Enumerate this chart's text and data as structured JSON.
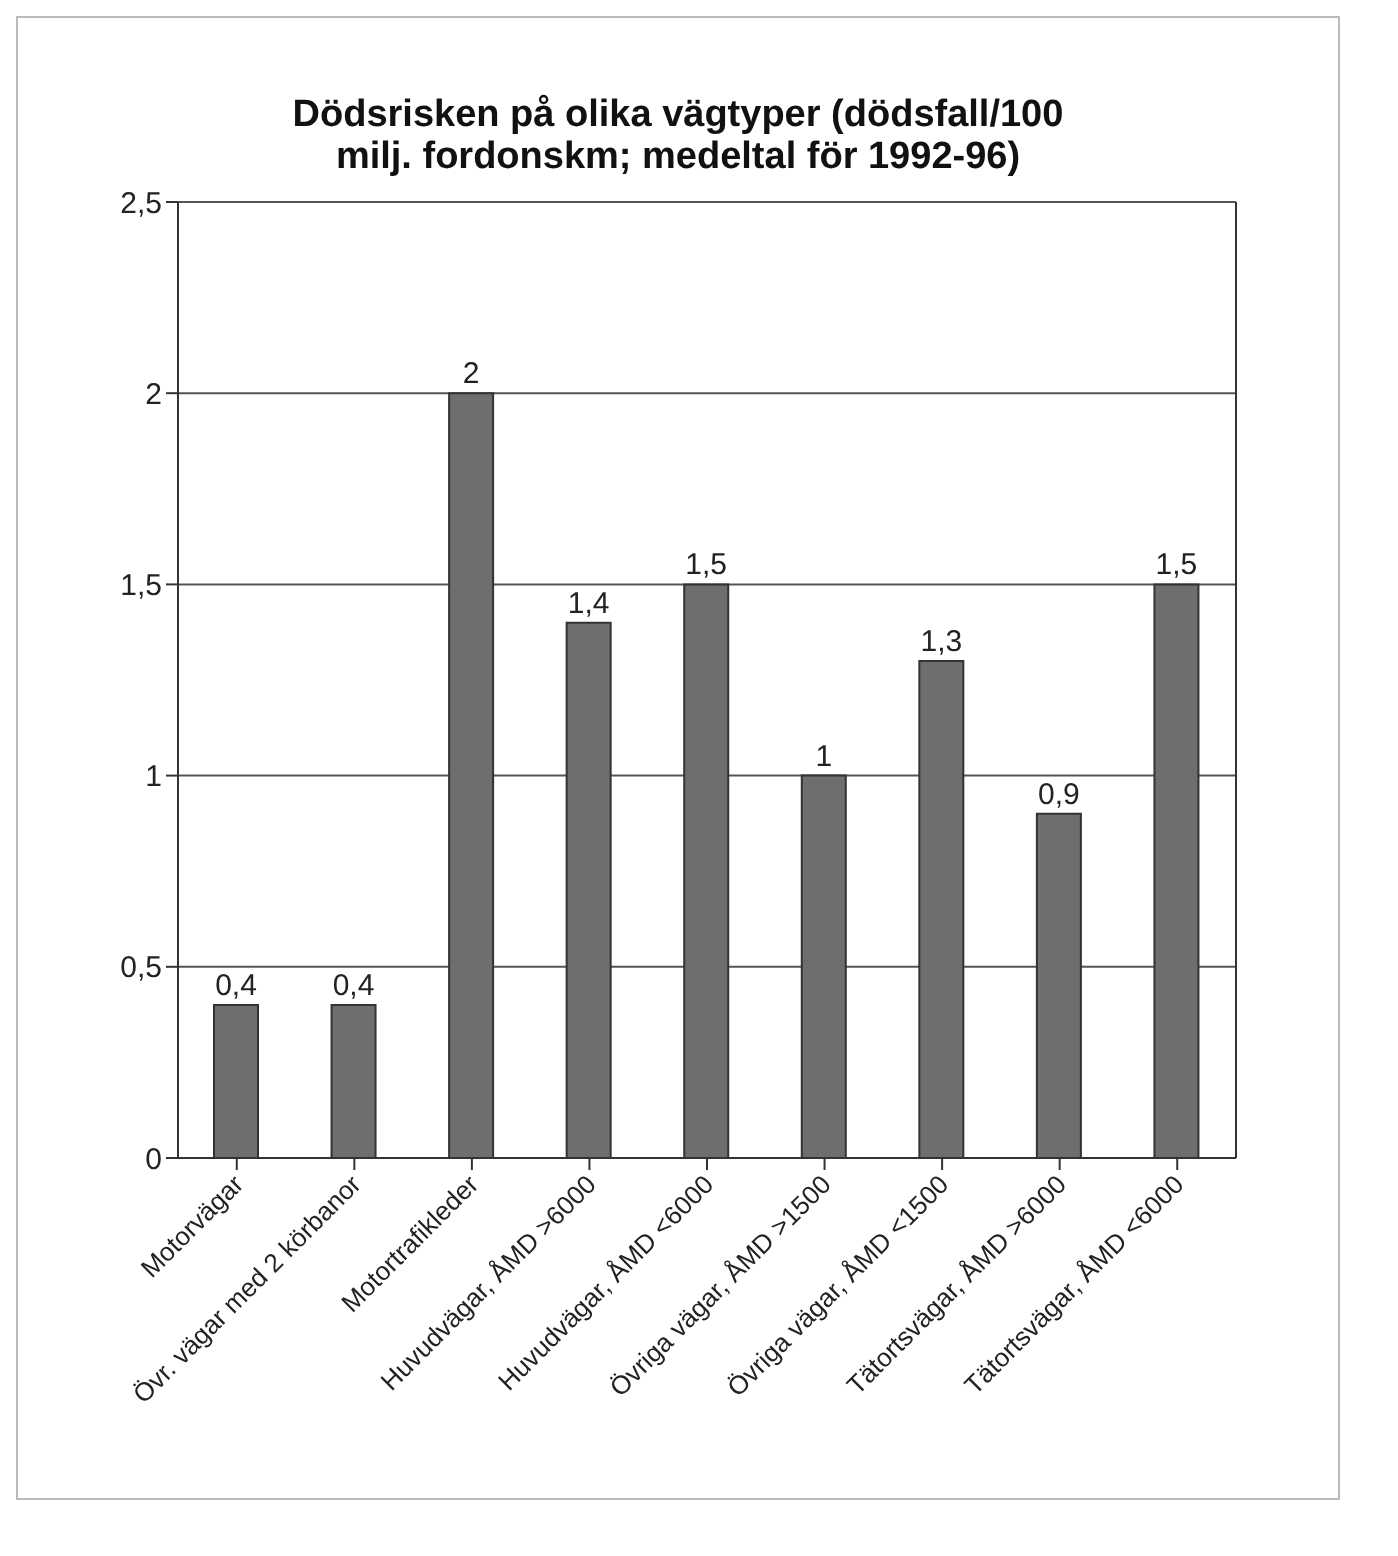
{
  "chart_data": {
    "type": "bar",
    "title": "Dödsrisken på olika vägtyper (dödsfall/100 milj. fordonskm; medeltal för 1992-96)",
    "categories": [
      "Motorvägar",
      "Övr. vägar med 2 körbanor",
      "Motortrafikleder",
      "Huvudvägar, ÅMD >6000",
      "Huvudvägar, ÅMD <6000",
      "Övriga vägar, ÅMD >1500",
      "Övriga vägar, ÅMD <1500",
      "Tätortsvägar, ÅMD >6000",
      "Tätortsvägar, ÅMD <6000"
    ],
    "values": [
      0.4,
      0.4,
      2,
      1.4,
      1.5,
      1,
      1.3,
      0.9,
      1.5
    ],
    "value_labels": [
      "0,4",
      "0,4",
      "2",
      "1,4",
      "1,5",
      "1",
      "1,3",
      "0,9",
      "1,5"
    ],
    "color": "#6e6e6e",
    "ylim": [
      0,
      2.5
    ],
    "yticks": [
      0,
      {
        "value": 0.5,
        "label": "0,5"
      },
      1,
      {
        "value": 1.5,
        "label": "1,5"
      },
      2,
      {
        "value": 2.5,
        "label": "2,5"
      }
    ],
    "grid": "y",
    "legend": false
  }
}
